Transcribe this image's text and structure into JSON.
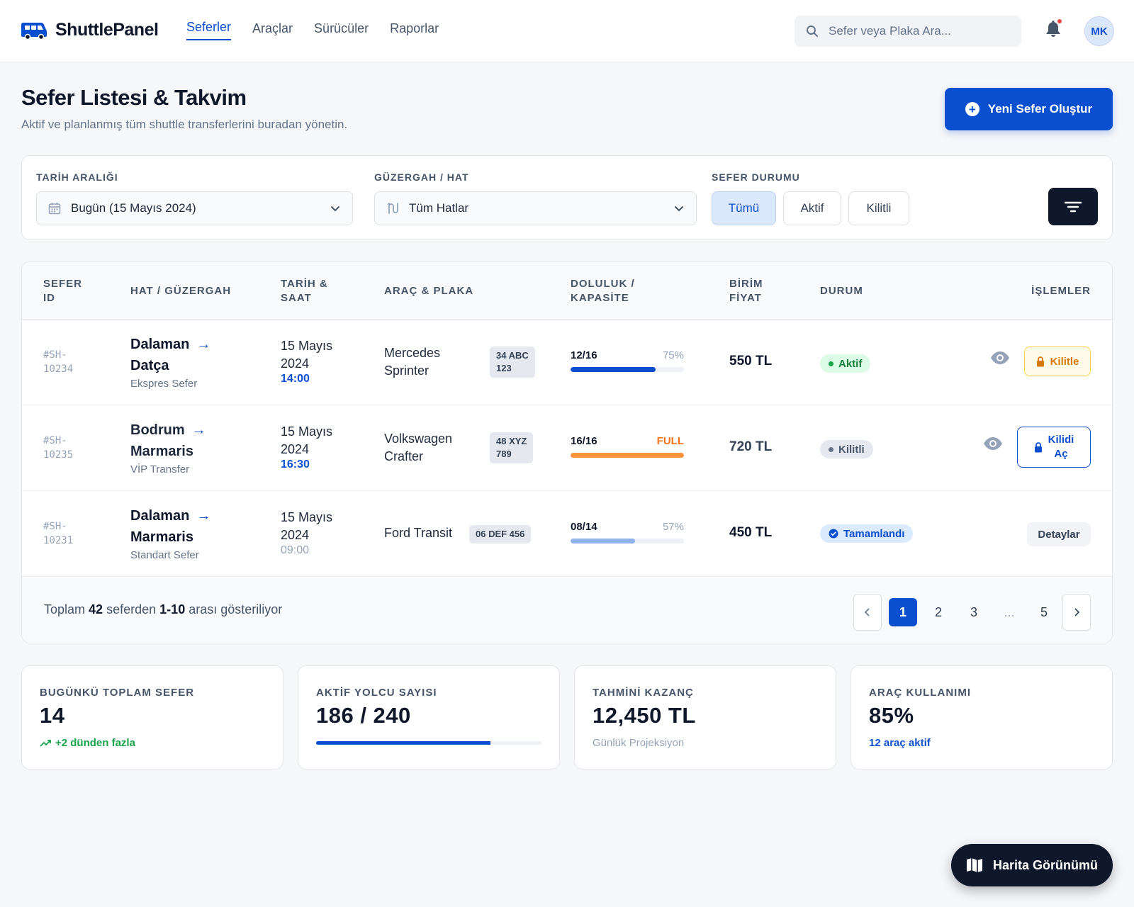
{
  "brand": {
    "name": "ShuttlePanel"
  },
  "nav": [
    {
      "label": "Seferler",
      "active": true
    },
    {
      "label": "Araçlar"
    },
    {
      "label": "Sürücüler"
    },
    {
      "label": "Raporlar"
    }
  ],
  "search": {
    "placeholder": "Sefer veya Plaka Ara..."
  },
  "user": {
    "initials": "MK"
  },
  "page": {
    "title": "Sefer Listesi & Takvim",
    "subtitle": "Aktif ve planlanmış tüm shuttle transferlerini buradan yönetin.",
    "new_button": "Yeni Sefer Oluştur"
  },
  "filters": {
    "date_label": "TARİH ARALIĞI",
    "date_value": "Bugün (15 Mayıs 2024)",
    "route_label": "GÜZERGAH / HAT",
    "route_value": "Tüm Hatlar",
    "status_label": "SEFER DURUMU",
    "status_options": [
      "Tümü",
      "Aktif",
      "Kilitli"
    ],
    "status_selected": "Tümü"
  },
  "table": {
    "headers": {
      "id": [
        "SEFER",
        "ID"
      ],
      "route": [
        "HAT / GÜZERGAH"
      ],
      "datetime": [
        "TARİH &",
        "SAAT"
      ],
      "vehicle": [
        "ARAÇ & PLAKA"
      ],
      "occupancy": [
        "DOLULUK /",
        "KAPASİTE"
      ],
      "price": [
        "BİRİM",
        "FİYAT"
      ],
      "status": [
        "DURUM"
      ],
      "actions": [
        "İŞLEMLER"
      ]
    },
    "rows": [
      {
        "id": [
          "#SH-",
          "10234"
        ],
        "from": "Dalaman",
        "to": "Datça",
        "type": "Ekspres Sefer",
        "date": [
          "15 Mayıs",
          "2024"
        ],
        "time": "14:00",
        "vehicle": [
          "Mercedes",
          "Sprinter"
        ],
        "plate": [
          "34 ABC",
          "123"
        ],
        "occupancy": "12/16",
        "occupancy_pct_label": "75%",
        "occupancy_fraction": 0.75,
        "price": "550 TL",
        "status": "Aktif",
        "action": "Kilitle"
      },
      {
        "id": [
          "#SH-",
          "10235"
        ],
        "from": "Bodrum",
        "to": "Marmaris",
        "type": "VİP Transfer",
        "date": [
          "15 Mayıs",
          "2024"
        ],
        "time": "16:30",
        "vehicle": [
          "Volkswagen",
          "Crafter"
        ],
        "plate": [
          "48 XYZ",
          "789"
        ],
        "occupancy": "16/16",
        "occupancy_pct_label": "FULL",
        "occupancy_fraction": 1.0,
        "price": "720 TL",
        "status": "Kilitli",
        "action": [
          "Kilidi",
          "Aç"
        ]
      },
      {
        "id": [
          "#SH-",
          "10231"
        ],
        "from": "Dalaman",
        "to": "Marmaris",
        "type": "Standart Sefer",
        "date": [
          "15 Mayıs",
          "2024"
        ],
        "time": "09:00",
        "vehicle": [
          "Ford Transit"
        ],
        "plate": [
          "06 DEF 456"
        ],
        "occupancy": "08/14",
        "occupancy_pct_label": "57%",
        "occupancy_fraction": 0.57,
        "price": "450 TL",
        "status": "Tamamlandı",
        "action": "Detaylar"
      }
    ],
    "footer": {
      "prefix": "Toplam",
      "total": "42",
      "middle": "seferden",
      "range": "1-10",
      "suffix": "arası gösteriliyor"
    },
    "pagination": [
      "1",
      "2",
      "3",
      "...",
      "5"
    ],
    "current_page": "1"
  },
  "stats": [
    {
      "label": "BUGÜNKÜ TOPLAM SEFER",
      "value": "14",
      "sub": "+2 dünden fazla"
    },
    {
      "label": "AKTİF YOLCU SAYISI",
      "value": "186 / 240",
      "fraction": 0.775
    },
    {
      "label": "TAHMİNİ KAZANÇ",
      "value": "12,450 TL",
      "sub": "Günlük Projeksiyon"
    },
    {
      "label": "ARAÇ KULLANIMI",
      "value": "85%",
      "sub": "12 araç aktif"
    }
  ],
  "map_button": "Harita Görünümü",
  "colors": {
    "primary": "#0b4fd1",
    "dark": "#0f172a",
    "active_green": "#16a34a",
    "warning_orange": "#f59e0b",
    "full_orange": "#f97316"
  },
  "icons": [
    "bus-icon",
    "search-icon",
    "bell-icon",
    "calendar-icon",
    "route-icon",
    "chevron-down-icon",
    "filter-icon",
    "arrow-right-icon",
    "eye-icon",
    "lock-icon",
    "check-circle-icon",
    "trend-up-icon",
    "map-icon",
    "plus-circle-icon",
    "chevron-left-icon",
    "chevron-right-icon"
  ]
}
